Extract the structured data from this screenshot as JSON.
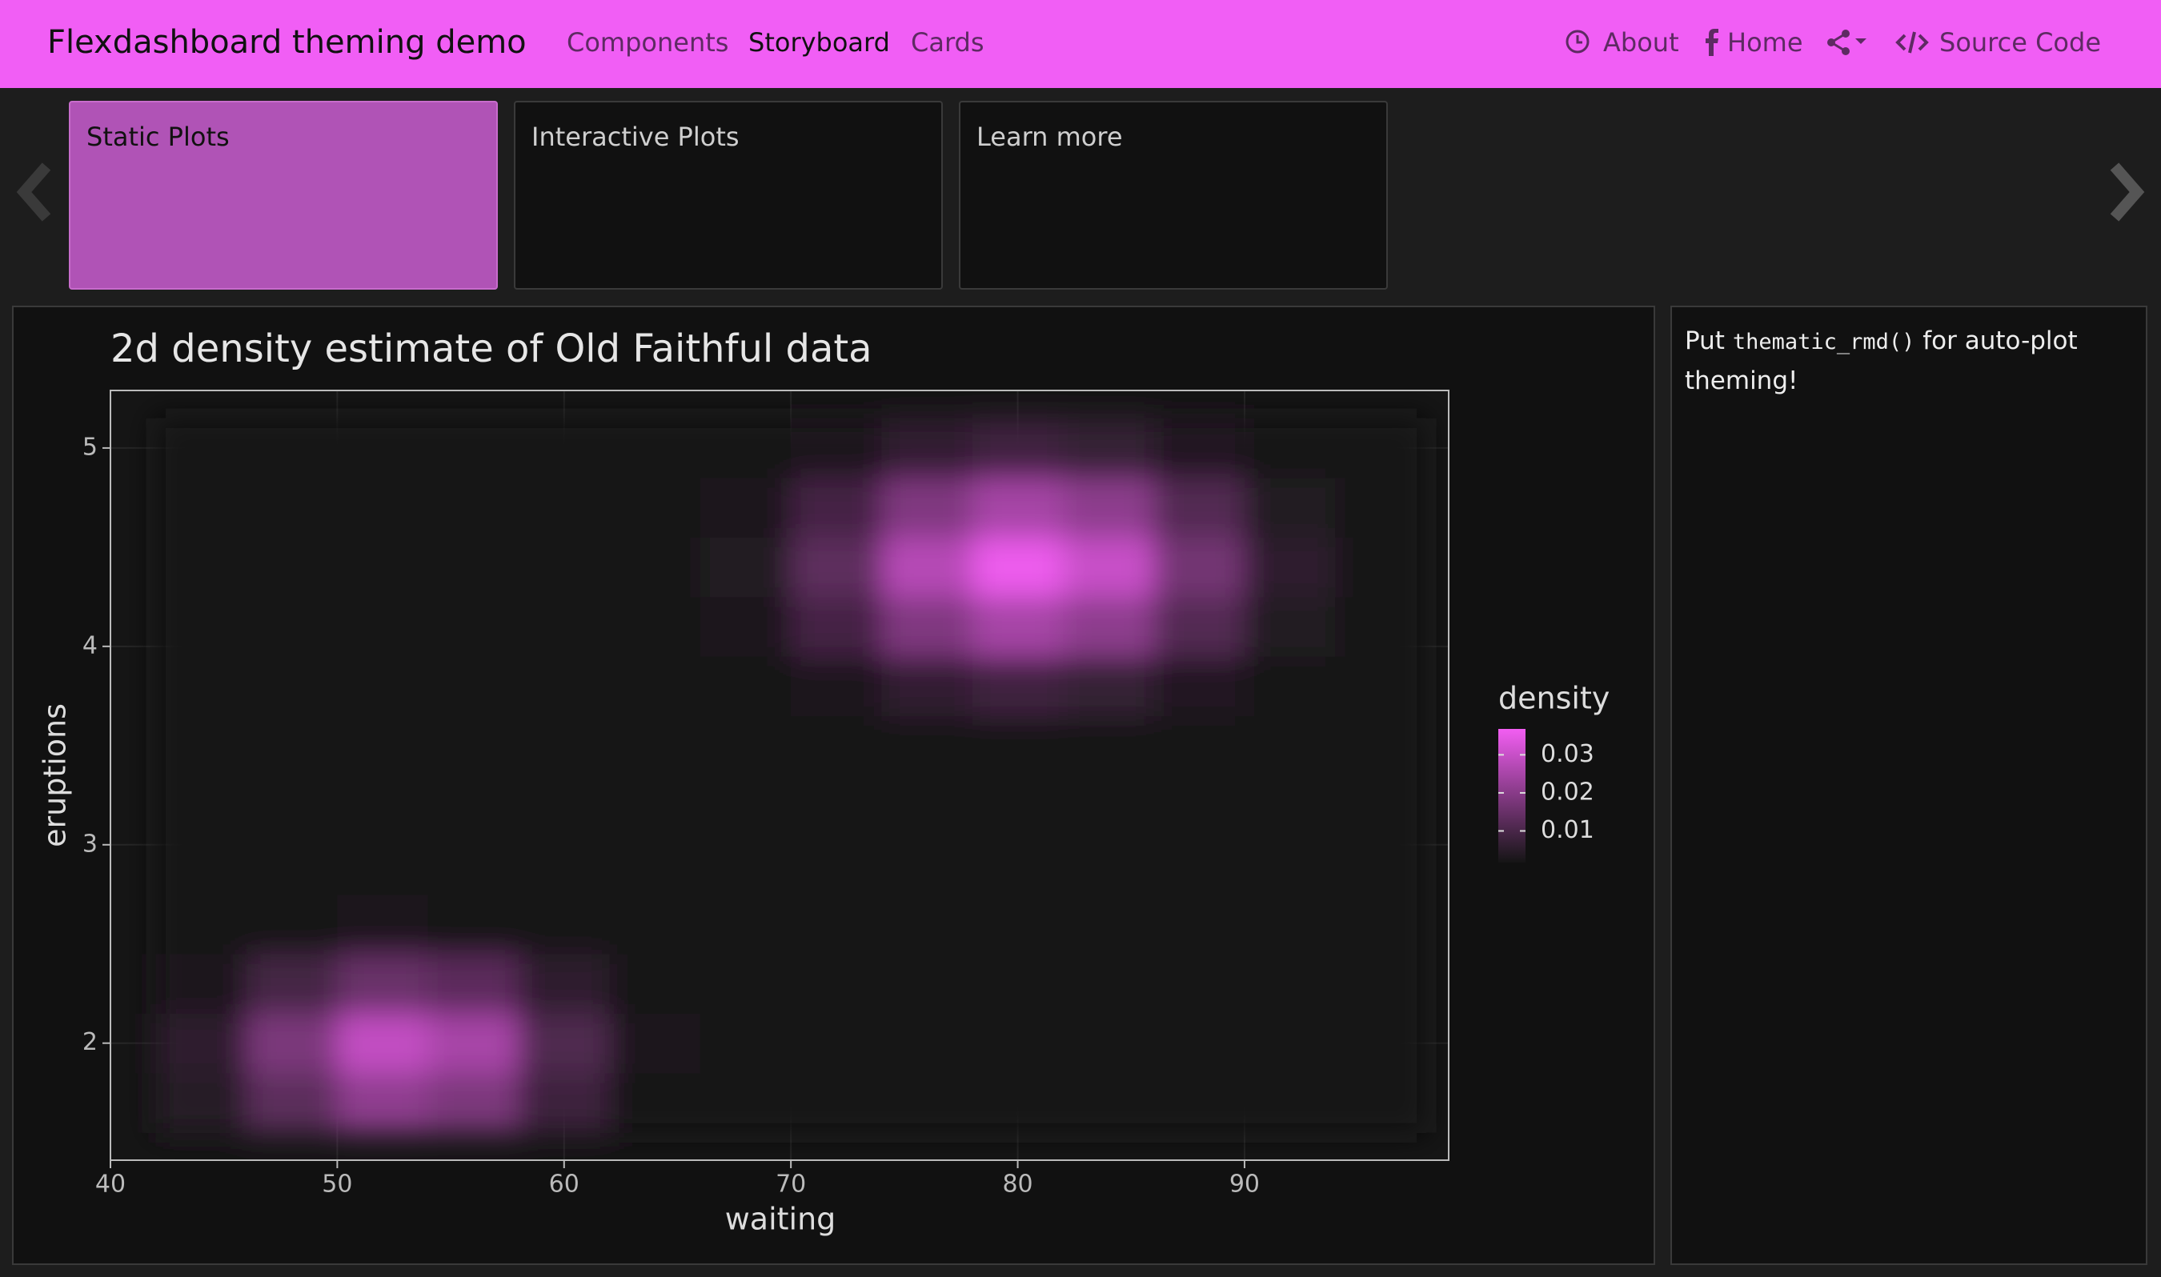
{
  "nav": {
    "brand": "Flexdashboard theming demo",
    "left": [
      "Components",
      "Storyboard",
      "Cards"
    ],
    "right": [
      "About",
      "Home",
      "Source Code"
    ]
  },
  "storyboard": [
    "Static Plots",
    "Interactive Plots",
    "Learn more"
  ],
  "sidebar": {
    "text_before": "Put",
    "code": "thematic_rmd()",
    "text_after": "for auto-plot theming!"
  },
  "chart_data": {
    "type": "heatmap",
    "title": "2d density estimate of Old Faithful data",
    "x_label": "waiting",
    "y_label": "eruptions",
    "legend_title": "density",
    "x": [
      44,
      48,
      52,
      56,
      60,
      64,
      68,
      72,
      76,
      80,
      84,
      88,
      92,
      96
    ],
    "y": [
      1.7,
      2.0,
      2.3,
      2.6,
      2.9,
      3.2,
      3.5,
      3.8,
      4.1,
      4.4,
      4.7,
      5.0
    ],
    "z": [
      [
        0.0043,
        0.013,
        0.0209,
        0.0179,
        0.008,
        0.0019,
        0.0002,
        0,
        0,
        0,
        0,
        0,
        0,
        0
      ],
      [
        0.0059,
        0.0181,
        0.0291,
        0.0249,
        0.0111,
        0.0026,
        0.0003,
        0,
        0,
        0,
        0,
        0,
        0,
        0
      ],
      [
        0.0031,
        0.0093,
        0.015,
        0.0129,
        0.0057,
        0.0014,
        0.0002,
        0,
        0,
        0,
        0,
        0,
        0,
        0
      ],
      [
        0.0006,
        0.0017,
        0.0028,
        0.0024,
        0.0011,
        0.0003,
        0,
        0,
        0,
        0,
        0,
        0,
        0,
        0
      ],
      [
        0,
        0.0001,
        0.0002,
        0.0002,
        0.0001,
        0,
        0,
        0,
        0,
        0,
        0,
        0,
        0,
        0
      ],
      [
        0,
        0,
        0,
        0,
        0,
        0,
        0,
        0,
        0.0001,
        0.0001,
        0.0001,
        0,
        0,
        0
      ],
      [
        0,
        0,
        0,
        0,
        0,
        0,
        0.0002,
        0.0005,
        0.001,
        0.0013,
        0.0011,
        0.0006,
        0.0002,
        0
      ],
      [
        0,
        0,
        0,
        0,
        0,
        0.0002,
        0.0009,
        0.003,
        0.0063,
        0.0083,
        0.007,
        0.0038,
        0.0013,
        0.0003
      ],
      [
        0,
        0,
        0,
        0,
        0.0001,
        0.0006,
        0.0028,
        0.0091,
        0.0187,
        0.0248,
        0.0208,
        0.0114,
        0.004,
        0.0009
      ],
      [
        0,
        0,
        0,
        0,
        0.0001,
        0.0008,
        0.0041,
        0.0132,
        0.0272,
        0.036,
        0.0302,
        0.0166,
        0.0058,
        0.0013
      ],
      [
        0,
        0,
        0,
        0,
        0.0001,
        0.0006,
        0.0028,
        0.0091,
        0.0187,
        0.0248,
        0.0208,
        0.0114,
        0.004,
        0.0009
      ],
      [
        0,
        0,
        0,
        0,
        0,
        0.0002,
        0.0009,
        0.003,
        0.0063,
        0.0083,
        0.007,
        0.0038,
        0.0013,
        0.0003
      ]
    ],
    "xlim": [
      40,
      99
    ],
    "ylim": [
      1.41,
      5.29
    ],
    "xticks": [
      40,
      50,
      60,
      70,
      80,
      90
    ],
    "yticks": [
      2,
      3,
      4,
      5
    ],
    "zlim": [
      0.0017,
      0.0368
    ],
    "zticks": [
      0.01,
      0.02,
      0.03
    ],
    "color_low": "#151515",
    "color_high": "#f25ef2",
    "grid": true
  }
}
